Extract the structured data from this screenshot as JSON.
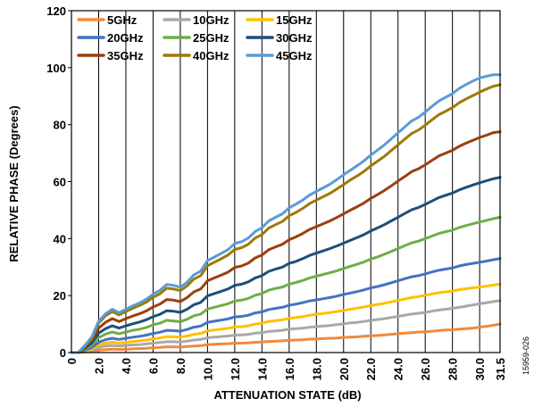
{
  "figure_id": "15959-026",
  "chart_data": {
    "type": "line",
    "title": "",
    "xlabel": "ATTENUATION STATE (dB)",
    "ylabel": "RELATIVE PHASE (Degrees)",
    "xlim": [
      0,
      31.5
    ],
    "ylim": [
      0,
      120
    ],
    "grid": "vertical",
    "legend_placement": "top-left",
    "x_ticks": [
      "0",
      "2.0",
      "4.0",
      "6.0",
      "8.0",
      "10.0",
      "12.0",
      "14.0",
      "16.0",
      "18.0",
      "20.0",
      "22.0",
      "24.0",
      "26.0",
      "28.0",
      "30.0",
      "31.5"
    ],
    "y_ticks": [
      "0",
      "20",
      "40",
      "60",
      "80",
      "100",
      "120"
    ],
    "x": [
      0,
      0.5,
      1.0,
      1.5,
      2.0,
      2.5,
      3.0,
      3.5,
      4.0,
      4.5,
      5.0,
      5.5,
      6.0,
      6.5,
      7.0,
      7.5,
      8.0,
      8.5,
      9.0,
      9.5,
      10.0,
      10.5,
      11.0,
      11.5,
      12.0,
      12.5,
      13.0,
      13.5,
      14.0,
      14.5,
      15.0,
      15.5,
      16.0,
      16.5,
      17.0,
      17.5,
      18.0,
      18.5,
      19.0,
      19.5,
      20.0,
      20.5,
      21.0,
      21.5,
      22.0,
      22.5,
      23.0,
      23.5,
      24.0,
      24.5,
      25.0,
      25.5,
      26.0,
      26.5,
      27.0,
      27.5,
      28.0,
      28.5,
      29.0,
      29.5,
      30.0,
      30.5,
      31.0,
      31.5
    ],
    "series": [
      {
        "name": "5GHz",
        "color": "#f08a3e",
        "values": [
          0,
          0,
          0.2,
          0.4,
          0.8,
          1.0,
          1.2,
          1.1,
          1.2,
          1.3,
          1.4,
          1.5,
          1.7,
          1.8,
          2.0,
          2.0,
          1.9,
          2.1,
          2.3,
          2.4,
          2.8,
          2.9,
          3.0,
          3.1,
          3.3,
          3.3,
          3.4,
          3.6,
          3.7,
          3.9,
          4.0,
          4.1,
          4.3,
          4.4,
          4.5,
          4.7,
          4.8,
          4.9,
          5.0,
          5.1,
          5.3,
          5.4,
          5.5,
          5.7,
          5.9,
          6.0,
          6.2,
          6.4,
          6.6,
          6.8,
          7.0,
          7.2,
          7.3,
          7.5,
          7.7,
          7.9,
          8.0,
          8.2,
          8.4,
          8.6,
          8.9,
          9.2,
          9.6,
          10.0
        ]
      },
      {
        "name": "10GHz",
        "color": "#a8a8a8",
        "values": [
          0,
          0,
          0.4,
          0.9,
          1.8,
          2.3,
          2.5,
          2.3,
          2.5,
          2.7,
          2.8,
          3.0,
          3.3,
          3.5,
          3.8,
          3.8,
          3.7,
          4.0,
          4.4,
          4.6,
          5.2,
          5.4,
          5.6,
          5.8,
          6.1,
          6.2,
          6.4,
          6.8,
          7.0,
          7.4,
          7.6,
          7.8,
          8.2,
          8.4,
          8.6,
          8.9,
          9.1,
          9.3,
          9.5,
          9.8,
          10.1,
          10.4,
          10.6,
          10.9,
          11.3,
          11.6,
          11.9,
          12.3,
          12.7,
          13.1,
          13.5,
          13.8,
          14.1,
          14.5,
          14.9,
          15.2,
          15.5,
          15.9,
          16.3,
          16.7,
          17.1,
          17.5,
          17.9,
          18.2
        ]
      },
      {
        "name": "15GHz",
        "color": "#ffc000",
        "values": [
          0,
          0,
          0.6,
          1.3,
          2.6,
          3.3,
          3.6,
          3.3,
          3.6,
          3.9,
          4.1,
          4.4,
          4.8,
          5.1,
          5.6,
          5.5,
          5.4,
          5.8,
          6.4,
          6.7,
          7.6,
          7.9,
          8.2,
          8.5,
          9.0,
          9.1,
          9.4,
          10.0,
          10.3,
          10.9,
          11.2,
          11.5,
          12.0,
          12.3,
          12.6,
          13.1,
          13.4,
          13.7,
          14.0,
          14.4,
          14.8,
          15.2,
          15.6,
          16.0,
          16.5,
          16.9,
          17.3,
          17.8,
          18.3,
          18.8,
          19.3,
          19.6,
          20.1,
          20.6,
          21.0,
          21.3,
          21.6,
          22.1,
          22.4,
          22.7,
          23.0,
          23.3,
          23.7,
          24.0
        ]
      },
      {
        "name": "20GHz",
        "color": "#4472c4",
        "values": [
          0,
          0,
          0.8,
          1.8,
          3.6,
          4.5,
          5.0,
          4.6,
          5.0,
          5.4,
          5.7,
          6.1,
          6.7,
          7.1,
          7.8,
          7.7,
          7.5,
          8.1,
          8.9,
          9.3,
          10.6,
          11.0,
          11.4,
          11.8,
          12.5,
          12.7,
          13.1,
          13.9,
          14.3,
          15.1,
          15.5,
          15.9,
          16.6,
          17.0,
          17.5,
          18.1,
          18.5,
          18.9,
          19.3,
          19.8,
          20.4,
          20.9,
          21.4,
          22.0,
          22.7,
          23.2,
          23.8,
          24.5,
          25.2,
          25.9,
          26.6,
          27.0,
          27.6,
          28.3,
          28.9,
          29.3,
          29.7,
          30.4,
          30.9,
          31.3,
          31.7,
          32.1,
          32.6,
          33.0
        ]
      },
      {
        "name": "25GHz",
        "color": "#70ad47",
        "values": [
          0,
          0,
          1.2,
          2.6,
          5.2,
          6.5,
          7.2,
          6.6,
          7.2,
          7.8,
          8.2,
          8.8,
          9.7,
          10.3,
          11.3,
          11.1,
          10.8,
          11.7,
          12.9,
          13.5,
          15.3,
          15.9,
          16.5,
          17.1,
          18.1,
          18.4,
          19.0,
          20.1,
          20.7,
          21.9,
          22.5,
          23.0,
          24.0,
          24.6,
          25.3,
          26.2,
          26.8,
          27.4,
          28.0,
          28.7,
          29.5,
          30.3,
          31.0,
          31.8,
          32.8,
          33.6,
          34.5,
          35.5,
          36.5,
          37.5,
          38.5,
          39.1,
          40.0,
          40.9,
          41.8,
          42.4,
          43.0,
          43.9,
          44.6,
          45.2,
          45.8,
          46.4,
          47.0,
          47.5
        ]
      },
      {
        "name": "30GHz",
        "color": "#1f4e79",
        "values": [
          0,
          0,
          1.6,
          3.4,
          6.8,
          8.4,
          9.4,
          8.6,
          9.4,
          10.1,
          10.7,
          11.5,
          12.6,
          13.4,
          14.7,
          14.5,
          14.1,
          15.2,
          16.8,
          17.6,
          19.9,
          20.7,
          21.5,
          22.3,
          23.6,
          24.0,
          24.8,
          26.2,
          27.0,
          28.5,
          29.3,
          30.0,
          31.3,
          32.0,
          33.0,
          34.1,
          34.9,
          35.7,
          36.5,
          37.4,
          38.4,
          39.4,
          40.4,
          41.4,
          42.7,
          43.8,
          44.9,
          46.2,
          47.5,
          48.8,
          50.1,
          50.9,
          52.0,
          53.2,
          54.4,
          55.2,
          56.0,
          57.1,
          58.0,
          58.8,
          59.6,
          60.3,
          61.0,
          61.5
        ]
      },
      {
        "name": "35GHz",
        "color": "#9c3f0e",
        "values": [
          0,
          0,
          2.0,
          4.3,
          8.6,
          10.6,
          11.9,
          10.9,
          11.9,
          12.8,
          13.6,
          14.6,
          16.0,
          17.0,
          18.6,
          18.4,
          17.9,
          19.3,
          21.3,
          22.3,
          25.2,
          26.2,
          27.2,
          28.2,
          29.9,
          30.4,
          31.4,
          33.2,
          34.2,
          36.1,
          37.1,
          38.0,
          39.6,
          40.6,
          41.8,
          43.2,
          44.2,
          45.2,
          46.2,
          47.4,
          48.7,
          50.0,
          51.2,
          52.5,
          54.1,
          55.5,
          56.9,
          58.5,
          60.2,
          61.8,
          63.5,
          64.5,
          65.9,
          67.5,
          69.0,
          70.0,
          71.0,
          72.4,
          73.5,
          74.5,
          75.5,
          76.3,
          77.2,
          77.5
        ]
      },
      {
        "name": "40GHz",
        "color": "#9c7a06",
        "values": [
          0,
          0,
          2.4,
          5.2,
          10.4,
          12.9,
          14.4,
          13.2,
          14.4,
          15.5,
          16.5,
          17.7,
          19.4,
          20.6,
          22.6,
          22.3,
          21.7,
          23.4,
          25.8,
          27.0,
          30.5,
          31.7,
          32.9,
          34.2,
          36.2,
          36.8,
          38.0,
          40.2,
          41.4,
          43.7,
          44.9,
          46.0,
          48.0,
          49.2,
          50.6,
          52.3,
          53.5,
          54.7,
          55.9,
          57.4,
          59.0,
          60.6,
          62.0,
          63.6,
          65.5,
          67.2,
          68.9,
          70.9,
          72.9,
          74.9,
          76.9,
          78.1,
          79.8,
          81.7,
          83.5,
          84.7,
          86.0,
          87.7,
          89.0,
          90.2,
          91.4,
          92.5,
          93.5,
          94.0
        ]
      },
      {
        "name": "45GHz",
        "color": "#5b9bd5",
        "values": [
          0,
          0,
          2.5,
          5.5,
          11.0,
          13.6,
          15.2,
          14.0,
          15.2,
          16.4,
          17.4,
          18.7,
          20.5,
          21.8,
          23.9,
          23.6,
          22.9,
          24.7,
          27.3,
          28.6,
          32.3,
          33.5,
          34.8,
          36.1,
          38.3,
          38.9,
          40.2,
          42.5,
          43.8,
          46.2,
          47.5,
          48.7,
          50.8,
          52.1,
          53.5,
          55.3,
          56.6,
          57.8,
          59.1,
          60.7,
          62.4,
          64.0,
          65.6,
          67.3,
          69.3,
          71.1,
          72.9,
          75.0,
          77.1,
          79.2,
          81.3,
          82.6,
          84.4,
          86.4,
          88.3,
          89.6,
          90.9,
          92.7,
          94.1,
          95.3,
          96.4,
          97.0,
          97.5,
          97.5
        ]
      }
    ]
  }
}
